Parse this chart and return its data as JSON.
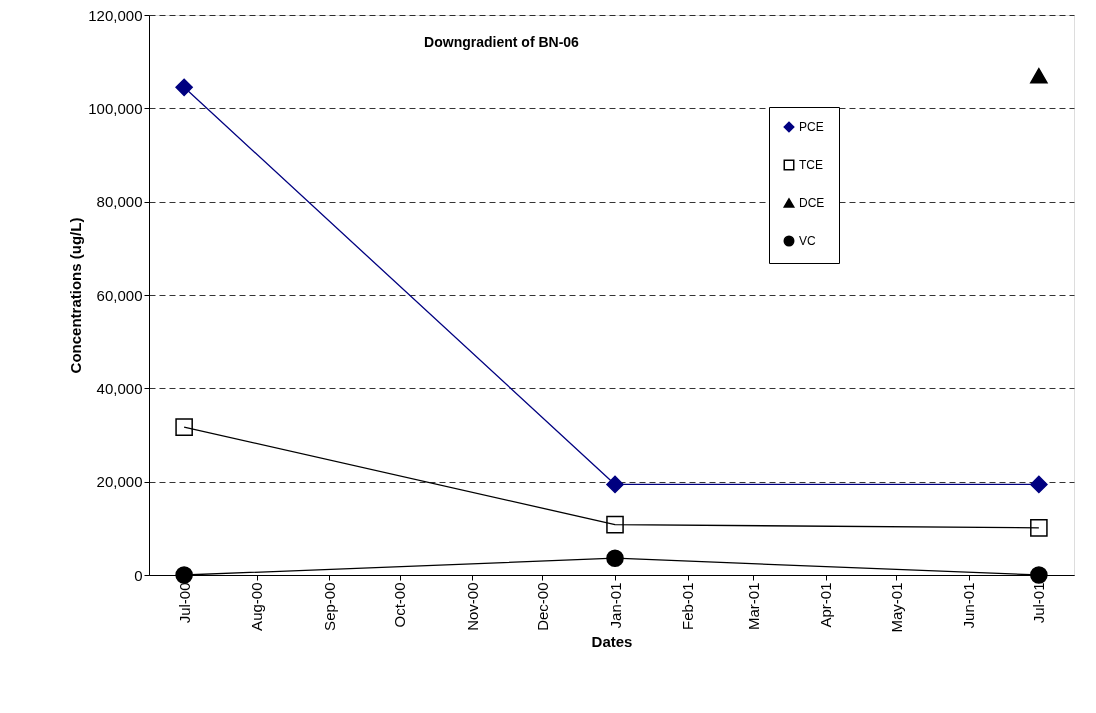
{
  "chart_data": {
    "type": "line",
    "title": "Downgradient of BN-06",
    "xlabel": "Dates",
    "ylabel": "Concentrations (ug/L)",
    "x": [
      "2000-07-01",
      "2001-01-01",
      "2001-07-01"
    ],
    "series": [
      {
        "name": "PCE",
        "color": "#000080",
        "marker": "diamond",
        "values": [
          104500,
          19400,
          19400
        ]
      },
      {
        "name": "TCE",
        "color": "#000000",
        "marker": "square",
        "values": [
          31700,
          10800,
          10100
        ]
      },
      {
        "name": "DCE",
        "color": "#000000",
        "marker": "triangle",
        "values": [
          null,
          null,
          107000
        ]
      },
      {
        "name": "VC",
        "color": "#000000",
        "marker": "circle",
        "values": [
          0,
          3600,
          0
        ]
      }
    ],
    "xlim": [
      "2000-06-16",
      "2001-07-16"
    ],
    "xticks": [
      {
        "value": "2000-07-01",
        "label": "Jul-00"
      },
      {
        "value": "2000-08-01",
        "label": "Aug-00"
      },
      {
        "value": "2000-09-01",
        "label": "Sep-00"
      },
      {
        "value": "2000-10-01",
        "label": "Oct-00"
      },
      {
        "value": "2000-11-01",
        "label": "Nov-00"
      },
      {
        "value": "2000-12-01",
        "label": "Dec-00"
      },
      {
        "value": "2001-01-01",
        "label": "Jan-01"
      },
      {
        "value": "2001-02-01",
        "label": "Feb-01"
      },
      {
        "value": "2001-03-01",
        "label": "Mar-01"
      },
      {
        "value": "2001-04-01",
        "label": "Apr-01"
      },
      {
        "value": "2001-05-01",
        "label": "May-01"
      },
      {
        "value": "2001-06-01",
        "label": "Jun-01"
      },
      {
        "value": "2001-07-01",
        "label": "Jul-01"
      }
    ],
    "ylim": [
      0,
      120000
    ],
    "yticks": [
      {
        "value": 0,
        "label": "0"
      },
      {
        "value": 20000,
        "label": "20,000"
      },
      {
        "value": 40000,
        "label": "40,000"
      },
      {
        "value": 60000,
        "label": "60,000"
      },
      {
        "value": 80000,
        "label": "80,000"
      },
      {
        "value": 100000,
        "label": "100,000"
      },
      {
        "value": 120000,
        "label": "120,000"
      }
    ],
    "grid": "y",
    "legend": "top right",
    "line_style": "solid"
  }
}
